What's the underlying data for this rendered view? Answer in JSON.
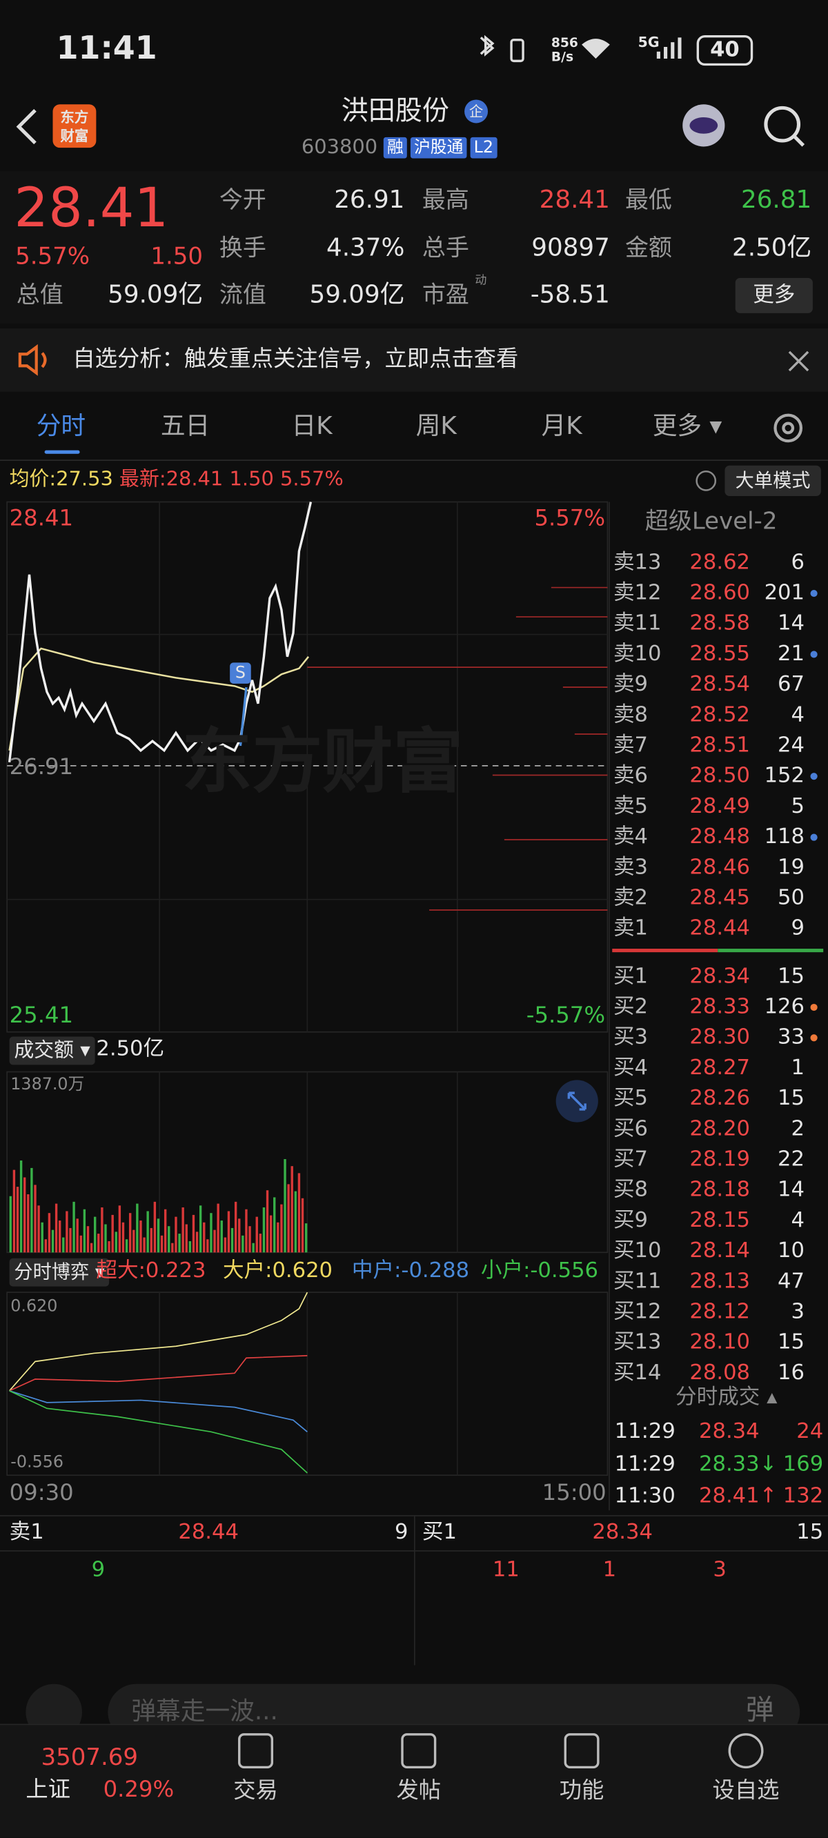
{
  "status_bar": {
    "time": "11:41",
    "net_speed": [
      "856",
      "B/s"
    ],
    "network": "5G",
    "battery": "40"
  },
  "header": {
    "logo": [
      "东方",
      "财富"
    ],
    "title": "洪田股份",
    "badge": "企",
    "code": "603800",
    "tags": [
      "融",
      "沪股通",
      "L2"
    ]
  },
  "quote": {
    "price": "28.41",
    "change_pct": "5.57%",
    "change": "1.50",
    "fields": [
      {
        "label": "今开",
        "value": "26.91",
        "color": "#e6e6e6",
        "col": 1,
        "row": 0
      },
      {
        "label": "最高",
        "value": "28.41",
        "color": "#f04848",
        "col": 2,
        "row": 0
      },
      {
        "label": "最低",
        "value": "26.81",
        "color": "#3ec24a",
        "col": 3,
        "row": 0
      },
      {
        "label": "换手",
        "value": "4.37%",
        "color": "#e6e6e6",
        "col": 1,
        "row": 1
      },
      {
        "label": "总手",
        "value": "90897",
        "color": "#e6e6e6",
        "col": 2,
        "row": 1
      },
      {
        "label": "金额",
        "value": "2.50亿",
        "color": "#e6e6e6",
        "col": 3,
        "row": 1
      },
      {
        "label": "总值",
        "value": "59.09亿",
        "color": "#e6e6e6",
        "col": 0,
        "row": 2
      },
      {
        "label": "流值",
        "value": "59.09亿",
        "color": "#e6e6e6",
        "col": 1,
        "row": 2
      },
      {
        "label": "市盈",
        "value": "-58.51",
        "color": "#e6e6e6",
        "col": 2,
        "row": 2
      }
    ],
    "pe_note": "动",
    "more": "更多"
  },
  "notice": {
    "text": "自选分析：触发重点关注信号，立即点击查看"
  },
  "tabs": [
    "分时",
    "五日",
    "日K",
    "周K",
    "月K",
    "更多"
  ],
  "info_row": {
    "avg_label": "均价:",
    "avg": "27.53",
    "latest_label": "最新:",
    "latest": "28.41",
    "change": "1.50",
    "pct": "5.57%",
    "mode": "大单模式"
  },
  "price_chart": {
    "high": "28.41",
    "high_pct": "5.57%",
    "open": "26.91",
    "low": "25.41",
    "low_pct": "-5.57%",
    "marker": "S",
    "watermark": "东方财富"
  },
  "level2": {
    "title": "超级Level-2",
    "asks": [
      {
        "label": "卖13",
        "price": "28.62",
        "vol": "6"
      },
      {
        "label": "卖12",
        "price": "28.60",
        "vol": "201",
        "dot": "#4a7fd8"
      },
      {
        "label": "卖11",
        "price": "28.58",
        "vol": "14"
      },
      {
        "label": "卖10",
        "price": "28.55",
        "vol": "21",
        "dot": "#4a7fd8"
      },
      {
        "label": "卖9",
        "price": "28.54",
        "vol": "67"
      },
      {
        "label": "卖8",
        "price": "28.52",
        "vol": "4"
      },
      {
        "label": "卖7",
        "price": "28.51",
        "vol": "24"
      },
      {
        "label": "卖6",
        "price": "28.50",
        "vol": "152",
        "dot": "#4a7fd8"
      },
      {
        "label": "卖5",
        "price": "28.49",
        "vol": "5"
      },
      {
        "label": "卖4",
        "price": "28.48",
        "vol": "118",
        "dot": "#4a7fd8"
      },
      {
        "label": "卖3",
        "price": "28.46",
        "vol": "19"
      },
      {
        "label": "卖2",
        "price": "28.45",
        "vol": "50"
      },
      {
        "label": "卖1",
        "price": "28.44",
        "vol": "9"
      }
    ],
    "bids": [
      {
        "label": "买1",
        "price": "28.34",
        "vol": "15"
      },
      {
        "label": "买2",
        "price": "28.33",
        "vol": "126",
        "dot": "#f07a3a"
      },
      {
        "label": "买3",
        "price": "28.30",
        "vol": "33",
        "dot": "#f07a3a"
      },
      {
        "label": "买4",
        "price": "28.27",
        "vol": "1"
      },
      {
        "label": "买5",
        "price": "28.26",
        "vol": "15"
      },
      {
        "label": "买6",
        "price": "28.20",
        "vol": "2"
      },
      {
        "label": "买7",
        "price": "28.19",
        "vol": "22"
      },
      {
        "label": "买8",
        "price": "28.18",
        "vol": "14"
      },
      {
        "label": "买9",
        "price": "28.15",
        "vol": "4"
      },
      {
        "label": "买10",
        "price": "28.14",
        "vol": "10"
      },
      {
        "label": "买11",
        "price": "28.13",
        "vol": "47"
      },
      {
        "label": "买12",
        "price": "28.12",
        "vol": "3"
      },
      {
        "label": "买13",
        "price": "28.10",
        "vol": "15"
      },
      {
        "label": "买14",
        "price": "28.08",
        "vol": "16"
      }
    ],
    "trades_title": "分时成交",
    "trades": [
      {
        "time": "11:29",
        "price": "28.34",
        "vol": "24",
        "color": "#f04848"
      },
      {
        "time": "11:29",
        "price": "28.33↓",
        "vol": "169",
        "color": "#3ec24a"
      },
      {
        "time": "11:30",
        "price": "28.41↑",
        "vol": "132",
        "color": "#f04848"
      }
    ]
  },
  "volume": {
    "label": "成交额",
    "total": "2.50亿",
    "max": "1387.0万"
  },
  "flow": {
    "label": "分时博弈",
    "items": [
      {
        "label": "超大:0.223",
        "color": "#f04848"
      },
      {
        "label": "大户:0.620",
        "color": "#f0d860"
      },
      {
        "label": "中户:-0.288",
        "color": "#4a8ad8"
      },
      {
        "label": "小户:-0.556",
        "color": "#3ec24a"
      }
    ],
    "max": "0.620",
    "min": "-0.556",
    "start": "09:30",
    "end": "15:00"
  },
  "bottom_book": {
    "ask": {
      "label": "卖1",
      "price": "28.44",
      "vol": "9"
    },
    "bid": {
      "label": "买1",
      "price": "28.34",
      "vol": "15"
    },
    "ask_detail": [
      "9"
    ],
    "bid_detail": [
      "11",
      "1",
      "3"
    ]
  },
  "comment": {
    "placeholder": "弹幕走一波...",
    "button": "弹"
  },
  "nav": {
    "index_value": "3507.69",
    "index_name": "上证",
    "index_pct": "0.29%",
    "items": [
      "交易",
      "发帖",
      "功能",
      "设自选"
    ]
  }
}
